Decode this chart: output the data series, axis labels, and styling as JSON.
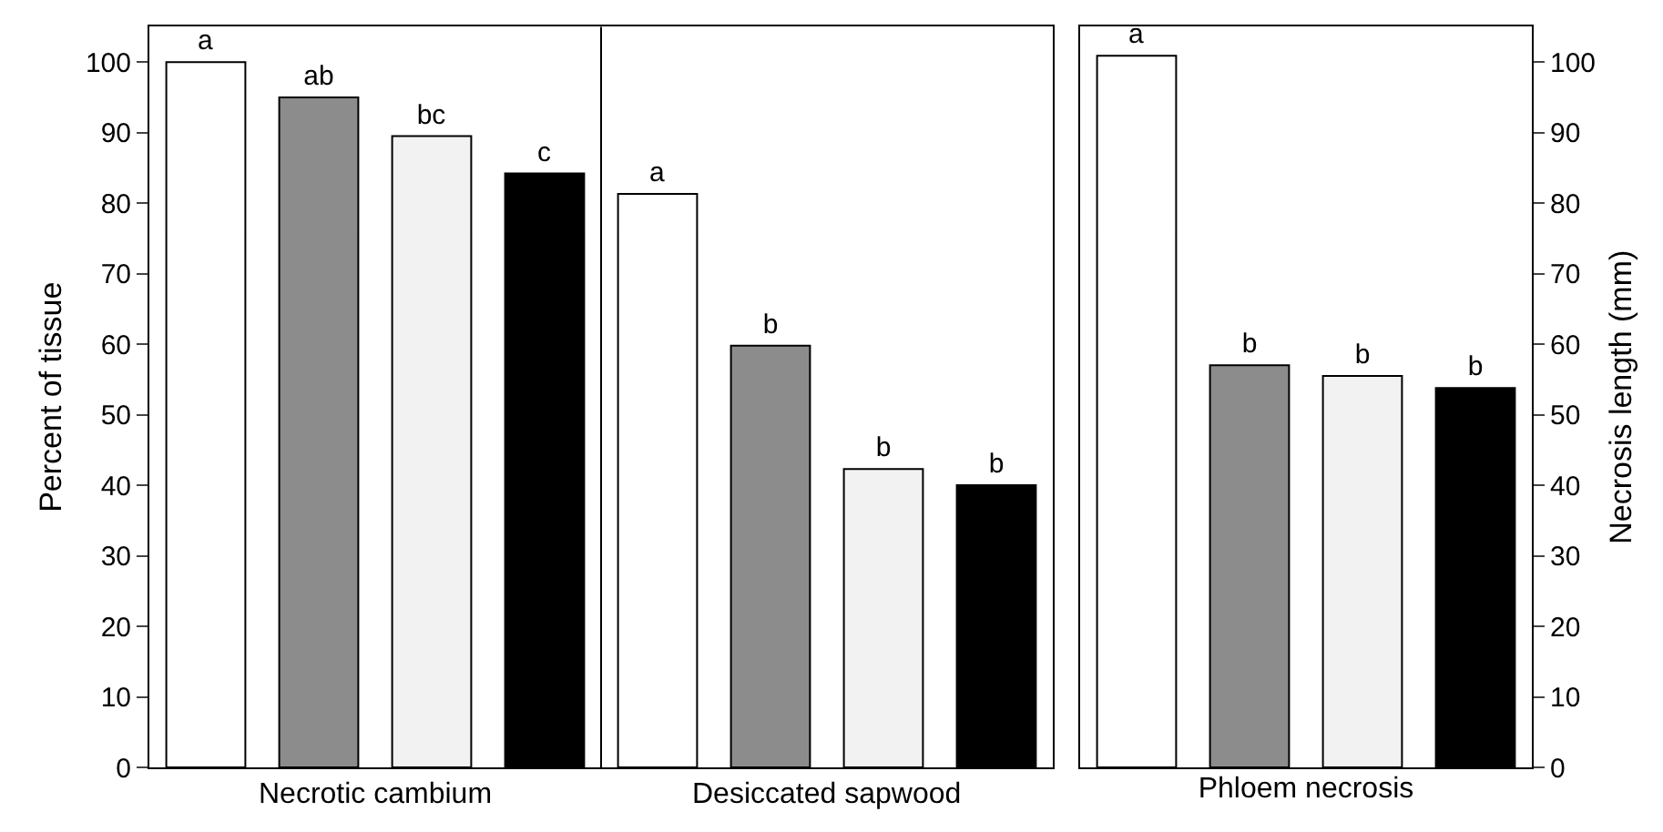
{
  "chart_data": [
    {
      "type": "bar",
      "ylabel": "Percent of tissue",
      "categories": [
        null,
        null,
        null,
        null,
        null,
        null,
        null,
        null
      ],
      "ylim": [
        0,
        105
      ],
      "yticks": [
        0,
        10,
        20,
        30,
        40,
        50,
        60,
        70,
        80,
        90,
        100
      ],
      "annotations": [
        "Necrotic cambium",
        "Desiccated sapwood"
      ],
      "series": [
        {
          "colors": [
            "#ffffff",
            "#8c8c8c",
            "#f2f2f2",
            "#000000",
            "#ffffff",
            "#8c8c8c",
            "#f2f2f2",
            "#000000"
          ],
          "values": [
            100,
            95,
            89.5,
            84.2,
            81.3,
            59.8,
            42.3,
            40
          ],
          "value_labels": [
            "a",
            "ab",
            "bc",
            "c",
            "a",
            "b",
            "b",
            "b"
          ]
        }
      ]
    },
    {
      "type": "bar",
      "xlabel": "Phloem necrosis",
      "ylabel": "Necrosis length (mm)",
      "categories": [
        null,
        null,
        null,
        null
      ],
      "ylim": [
        0,
        105
      ],
      "yticks": [
        0,
        10,
        20,
        30,
        40,
        50,
        60,
        70,
        80,
        90,
        100
      ],
      "series": [
        {
          "colors": [
            "#ffffff",
            "#8c8c8c",
            "#f2f2f2",
            "#000000"
          ],
          "values": [
            100.9,
            57,
            55.5,
            53.8
          ],
          "value_labels": [
            "a",
            "b",
            "b",
            "b"
          ]
        }
      ]
    }
  ]
}
